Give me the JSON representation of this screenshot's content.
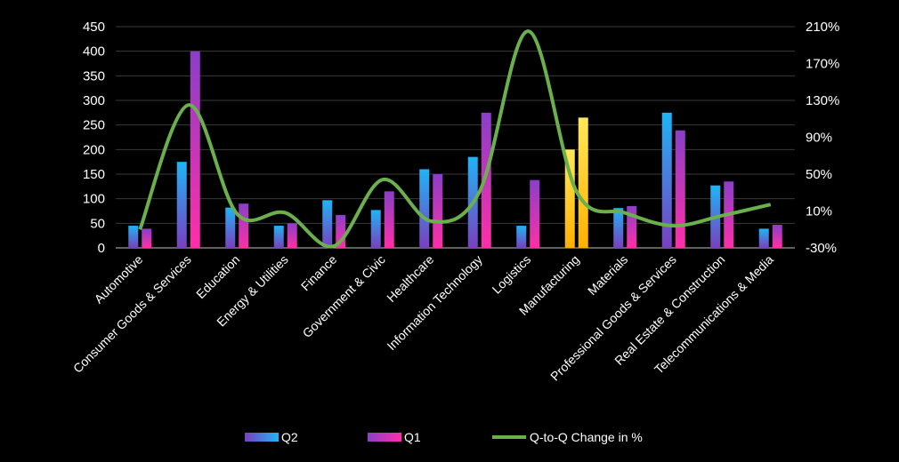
{
  "chart_data": {
    "type": "bar",
    "categories": [
      "Automotive",
      "Consumer Goods & Services",
      "Education",
      "Energy & Utilities",
      "Finance",
      "Government & Civic",
      "Healthcare",
      "Information Technology",
      "Logistics",
      "Manufacturing",
      "Materials",
      "Professional Goods & Services",
      "Real Estate & Construction",
      "Telecommunications & Media"
    ],
    "series": [
      {
        "name": "Q2",
        "type": "bar",
        "axis": "left",
        "values": [
          45,
          175,
          82,
          45,
          97,
          77,
          160,
          185,
          45,
          200,
          81,
          275,
          127,
          39
        ]
      },
      {
        "name": "Q1",
        "type": "bar",
        "axis": "left",
        "values": [
          39,
          400,
          90,
          50,
          67,
          115,
          150,
          275,
          138,
          265,
          85,
          239,
          135,
          47
        ]
      },
      {
        "name": "Q-to-Q Change in %",
        "type": "line",
        "axis": "right",
        "values": [
          -0.1,
          1.25,
          0.07,
          0.08,
          -0.28,
          0.44,
          -0.01,
          0.31,
          2.05,
          0.31,
          0.08,
          -0.06,
          0.05,
          0.17
        ]
      }
    ],
    "highlight_category": "Manufacturing",
    "y_left": {
      "ticks": [
        0,
        50,
        100,
        150,
        200,
        250,
        300,
        350,
        400,
        450
      ],
      "ylim": [
        0,
        450
      ]
    },
    "y_right": {
      "ticks": [
        "-30%",
        "10%",
        "50%",
        "90%",
        "130%",
        "170%",
        "210%"
      ],
      "ylim": [
        -0.3,
        2.1
      ]
    },
    "grid": true,
    "legend_position": "bottom",
    "colors": {
      "q2_gradient": [
        "#1fb4f5",
        "#7a3fc0"
      ],
      "q1_gradient": [
        "#8a3fc8",
        "#ff2fa8"
      ],
      "highlight": [
        "#ffd400",
        "#ffe85a"
      ],
      "line": "#6ab04c",
      "background": "#000000",
      "grid": "#3a3a3a",
      "text": "#ffffff"
    }
  }
}
